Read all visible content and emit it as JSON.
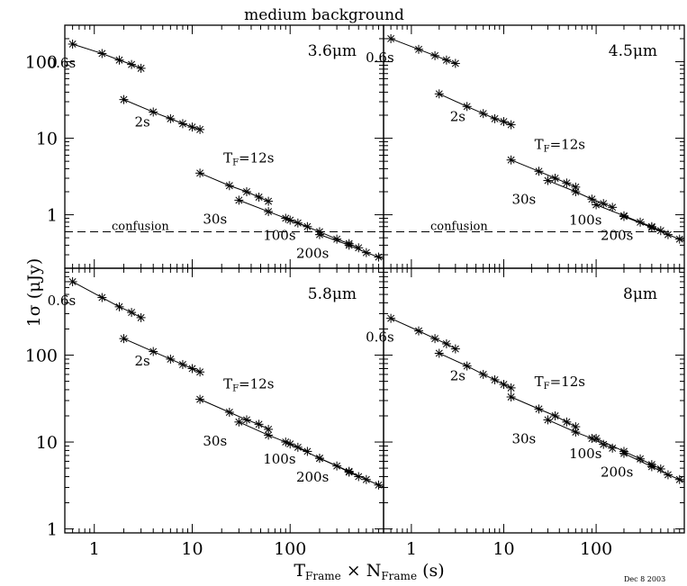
{
  "figure": {
    "title": "medium background",
    "ylabel": "1σ (μJy)",
    "xlabel": "T",
    "xlabel_sub1": "Frame",
    "xlabel_mid": " × N",
    "xlabel_sub2": "Frame",
    "xlabel_end": " (s)",
    "date_stamp": "Dec  8 2003"
  },
  "chart_data": [
    {
      "type": "line",
      "panel": "top-left",
      "band": "3.6μm",
      "xscale": "log",
      "yscale": "log",
      "xlim": [
        0.5,
        900
      ],
      "ylim": [
        0.2,
        300
      ],
      "xticks": [],
      "yticks": [
        1,
        10,
        100
      ],
      "ytick_labels": [
        "1",
        "10",
        "100"
      ],
      "series": [
        {
          "name": "0.6s",
          "x": [
            0.6,
            1.2,
            1.8,
            2.4,
            3.0
          ],
          "y": [
            170,
            128,
            105,
            92,
            82
          ]
        },
        {
          "name": "2s",
          "x": [
            2,
            4,
            6,
            8,
            10,
            12
          ],
          "y": [
            32,
            22,
            18,
            15.5,
            14,
            13
          ]
        },
        {
          "name": "TF=12s",
          "x": [
            12,
            24,
            36,
            48,
            60
          ],
          "y": [
            3.5,
            2.4,
            2.0,
            1.7,
            1.5
          ]
        },
        {
          "name": "30s",
          "x": [
            30,
            60,
            90,
            120,
            150
          ],
          "y": [
            1.55,
            1.1,
            0.9,
            0.78,
            0.7
          ]
        },
        {
          "name": "100s",
          "x": [
            100,
            200,
            300,
            400,
            500
          ],
          "y": [
            0.85,
            0.6,
            0.48,
            0.42,
            0.37
          ]
        },
        {
          "name": "200s",
          "x": [
            200,
            400,
            600,
            800,
            1000
          ],
          "y": [
            0.55,
            0.4,
            0.32,
            0.28,
            0.25
          ]
        }
      ],
      "confusion": {
        "label": "confusion",
        "y": 0.6
      }
    },
    {
      "type": "line",
      "panel": "top-right",
      "band": "4.5μm",
      "xscale": "log",
      "yscale": "log",
      "xlim": [
        0.5,
        900
      ],
      "ylim": [
        0.2,
        300
      ],
      "xticks": [],
      "yticks": [
        1,
        10,
        100
      ],
      "ytick_labels": [],
      "series": [
        {
          "name": "0.6s",
          "x": [
            0.6,
            1.2,
            1.8,
            2.4,
            3.0
          ],
          "y": [
            200,
            145,
            120,
            105,
            95
          ]
        },
        {
          "name": "2s",
          "x": [
            2,
            4,
            6,
            8,
            10,
            12
          ],
          "y": [
            38,
            26,
            21,
            18,
            16.5,
            15
          ]
        },
        {
          "name": "TF=12s",
          "x": [
            12,
            24,
            36,
            48,
            60
          ],
          "y": [
            5.2,
            3.7,
            3.0,
            2.6,
            2.3
          ]
        },
        {
          "name": "30s",
          "x": [
            30,
            60,
            90,
            120,
            150
          ],
          "y": [
            2.8,
            2.0,
            1.6,
            1.4,
            1.25
          ]
        },
        {
          "name": "100s",
          "x": [
            100,
            200,
            300,
            400,
            500
          ],
          "y": [
            1.35,
            0.97,
            0.8,
            0.7,
            0.62
          ]
        },
        {
          "name": "200s",
          "x": [
            200,
            400,
            600,
            800,
            1000
          ],
          "y": [
            0.95,
            0.68,
            0.55,
            0.48,
            0.43
          ]
        }
      ],
      "confusion": {
        "label": "confusion",
        "y": 0.6
      }
    },
    {
      "type": "line",
      "panel": "bottom-left",
      "band": "5.8μm",
      "xscale": "log",
      "yscale": "log",
      "xlim": [
        0.5,
        900
      ],
      "ylim": [
        0.9,
        1000
      ],
      "xticks": [
        1,
        10,
        100
      ],
      "xtick_labels": [
        "1",
        "10",
        "100"
      ],
      "yticks": [
        1,
        10,
        100
      ],
      "ytick_labels": [
        "1",
        "10",
        "100"
      ],
      "series": [
        {
          "name": "0.6s",
          "x": [
            0.6,
            1.2,
            1.8,
            2.4,
            3.0
          ],
          "y": [
            700,
            460,
            360,
            310,
            270
          ]
        },
        {
          "name": "2s",
          "x": [
            2,
            4,
            6,
            8,
            10,
            12
          ],
          "y": [
            155,
            110,
            90,
            78,
            70,
            64
          ]
        },
        {
          "name": "TF=12s",
          "x": [
            12,
            24,
            36,
            48,
            60
          ],
          "y": [
            31,
            22,
            18,
            16,
            14
          ]
        },
        {
          "name": "30s",
          "x": [
            30,
            60,
            90,
            120,
            150
          ],
          "y": [
            17,
            12,
            10,
            8.7,
            7.8
          ]
        },
        {
          "name": "100s",
          "x": [
            100,
            200,
            300,
            400,
            500
          ],
          "y": [
            9.5,
            6.5,
            5.3,
            4.5,
            4.0
          ]
        },
        {
          "name": "200s",
          "x": [
            200,
            400,
            600,
            800,
            1000
          ],
          "y": [
            6.5,
            4.6,
            3.7,
            3.2,
            2.9
          ]
        }
      ]
    },
    {
      "type": "line",
      "panel": "bottom-right",
      "band": "8μm",
      "xscale": "log",
      "yscale": "log",
      "xlim": [
        0.5,
        900
      ],
      "ylim": [
        0.9,
        1000
      ],
      "xticks": [
        1,
        10,
        100
      ],
      "xtick_labels": [
        "1",
        "10",
        "100"
      ],
      "yticks": [
        1,
        10,
        100
      ],
      "ytick_labels": [],
      "series": [
        {
          "name": "0.6s",
          "x": [
            0.6,
            1.2,
            1.8,
            2.4,
            3.0
          ],
          "y": [
            265,
            190,
            155,
            135,
            118
          ]
        },
        {
          "name": "2s",
          "x": [
            2,
            4,
            6,
            8,
            10,
            12
          ],
          "y": [
            105,
            75,
            60,
            52,
            46,
            42
          ]
        },
        {
          "name": "TF=12s",
          "x": [
            12,
            24,
            36,
            48,
            60
          ],
          "y": [
            33,
            24,
            20,
            17,
            15
          ]
        },
        {
          "name": "30s",
          "x": [
            30,
            60,
            90,
            120,
            150
          ],
          "y": [
            18,
            13,
            11,
            9.4,
            8.5
          ]
        },
        {
          "name": "100s",
          "x": [
            100,
            200,
            300,
            400,
            500
          ],
          "y": [
            11,
            7.8,
            6.4,
            5.5,
            4.9
          ]
        },
        {
          "name": "200s",
          "x": [
            200,
            400,
            600,
            800,
            1000
          ],
          "y": [
            7.4,
            5.2,
            4.2,
            3.7,
            3.3
          ]
        }
      ]
    }
  ]
}
